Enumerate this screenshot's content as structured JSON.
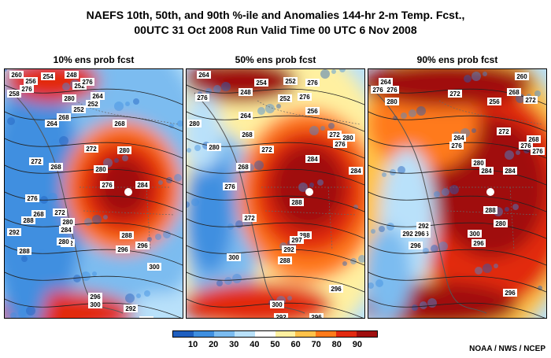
{
  "title": {
    "line1": "NAEFS 10th, 50th, and 90th %-ile and Anomalies 144-hr 2-m Temp. Fcst.,",
    "line2": "00UTC 31 Oct 2008 Run Valid Time 00 UTC 6 Nov 2008"
  },
  "panels": [
    {
      "label": "10% ens prob fcst",
      "contours": [
        "260",
        "256",
        "254",
        "248",
        "252",
        "276",
        "258",
        "276",
        "280",
        "252",
        "268",
        "252",
        "264",
        "264",
        "268",
        "280",
        "272",
        "272",
        "268",
        "280",
        "276",
        "284",
        "276",
        "268",
        "288",
        "292",
        "272",
        "280",
        "284",
        "288",
        "296",
        "292",
        "288",
        "296",
        "300",
        "296",
        "300",
        "292",
        "280",
        "300"
      ]
    },
    {
      "label": "50% ens prob fcst",
      "contours": [
        "264",
        "254",
        "252",
        "276",
        "276",
        "248",
        "252",
        "276",
        "280",
        "256",
        "264",
        "268",
        "280",
        "272",
        "276",
        "272",
        "268",
        "284",
        "284",
        "280",
        "276",
        "288",
        "288",
        "272",
        "297",
        "292",
        "288",
        "296",
        "300",
        "292",
        "296",
        "300"
      ]
    },
    {
      "label": "90% ens prob fcst",
      "contours": [
        "264",
        "260",
        "276",
        "276",
        "272",
        "280",
        "268",
        "272",
        "256",
        "264",
        "276",
        "272",
        "268",
        "276",
        "280",
        "284",
        "284",
        "276",
        "288",
        "280",
        "276",
        "292",
        "296",
        "292",
        "296",
        "300",
        "296",
        "296"
      ]
    }
  ],
  "colorbar": {
    "labels": [
      "10",
      "20",
      "30",
      "40",
      "50",
      "60",
      "70",
      "80",
      "90"
    ],
    "colors": [
      "#1f5fbf",
      "#3f8fe0",
      "#7bbcf0",
      "#b9e1fa",
      "#ffffff",
      "#fff0a0",
      "#ffc24a",
      "#ff7a1a",
      "#e22a10",
      "#a00f0f"
    ]
  },
  "credit": "NOAA / NWS / NCEP"
}
